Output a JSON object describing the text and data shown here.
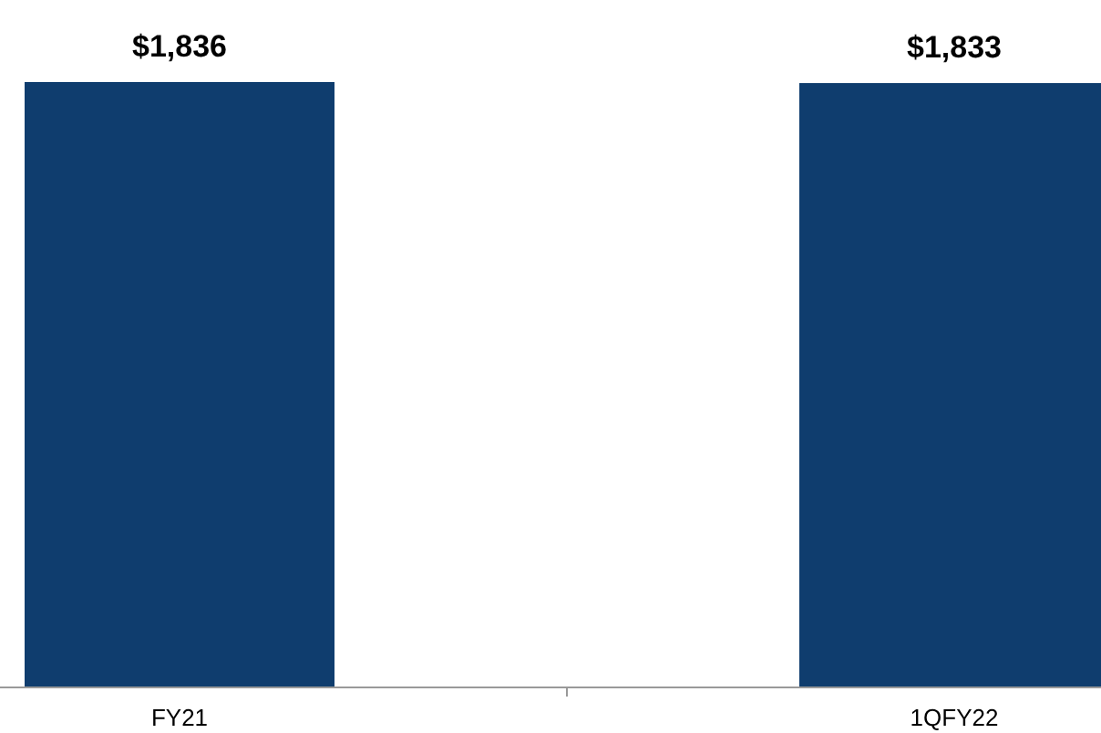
{
  "chart_data": {
    "type": "bar",
    "categories": [
      "FY21",
      "1QFY22"
    ],
    "values": [
      1836,
      1833
    ],
    "value_labels": [
      "$1,836",
      "$1,833"
    ],
    "color": "#0f3d6e"
  }
}
